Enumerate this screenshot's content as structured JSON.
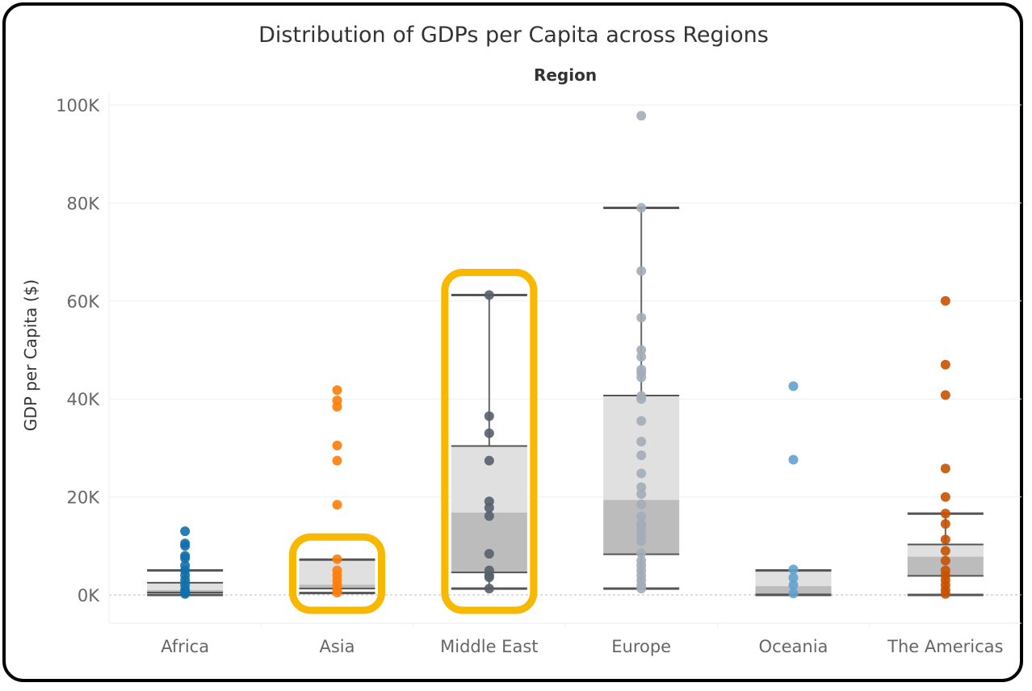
{
  "chart_data": {
    "type": "boxplot",
    "title": "Distribution of GDPs per Capita across Regions",
    "column_header": "Region",
    "ylabel": "GDP per Capita ($)",
    "ylim": [
      0,
      100000
    ],
    "yticks": [
      0,
      20000,
      40000,
      60000,
      80000,
      100000
    ],
    "ytick_labels": [
      "0K",
      "20K",
      "40K",
      "60K",
      "80K",
      "100K"
    ],
    "grid": true,
    "highlighted": [
      "Asia",
      "Middle East"
    ],
    "highlight_color": "#f8b800",
    "categories": [
      "Africa",
      "Asia",
      "Middle East",
      "Europe",
      "Oceania",
      "The Americas"
    ],
    "series": [
      {
        "name": "Africa",
        "color": "#1170aa",
        "whisker_low": 0,
        "q1": 500,
        "median": 1000,
        "q3": 2500,
        "whisker_high": 5000,
        "points": [
          13000,
          10500,
          10000,
          8000,
          7500,
          6000,
          5000,
          4000,
          3000,
          2000,
          1000,
          500,
          200
        ]
      },
      {
        "name": "Asia",
        "color": "#fc7d0b",
        "whisker_low": 400,
        "q1": 1300,
        "median": 2100,
        "q3": 7200,
        "whisker_high": 7200,
        "points": [
          41800,
          39700,
          38400,
          30500,
          27400,
          18400,
          7300,
          5000,
          4000,
          3000,
          2000,
          1000,
          500
        ]
      },
      {
        "name": "Middle East",
        "color": "#57606c",
        "whisker_low": 1300,
        "q1": 4600,
        "median": 16800,
        "q3": 30400,
        "whisker_high": 61200,
        "points": [
          61200,
          36500,
          33000,
          27400,
          19100,
          17800,
          16100,
          8400,
          5000,
          4000,
          3600,
          1300
        ]
      },
      {
        "name": "Europe",
        "color": "#a3acb9",
        "whisker_low": 1300,
        "q1": 8300,
        "median": 19400,
        "q3": 40700,
        "whisker_high": 79000,
        "points": [
          97800,
          79000,
          66100,
          56600,
          50000,
          48600,
          46000,
          45300,
          44400,
          40600,
          40000,
          35500,
          31300,
          28500,
          24800,
          22000,
          20600,
          18500,
          16000,
          14500,
          14000,
          13000,
          12000,
          11000,
          8500,
          7000,
          6000,
          5000,
          4000,
          3000,
          2000,
          1300
        ]
      },
      {
        "name": "Oceania",
        "color": "#5fa2ce",
        "whisker_low": 0,
        "q1": 100,
        "median": 1800,
        "q3": 5000,
        "whisker_high": 5000,
        "points": [
          42600,
          27600,
          5200,
          3500,
          2000,
          300
        ]
      },
      {
        "name": "The Americas",
        "color": "#c85200",
        "whisker_low": 0,
        "q1": 3900,
        "median": 7800,
        "q3": 10300,
        "whisker_high": 16600,
        "points": [
          60000,
          47000,
          40800,
          25800,
          20000,
          16600,
          14500,
          11300,
          9000,
          7000,
          5000,
          4000,
          3000,
          2000,
          1000,
          200
        ]
      }
    ]
  }
}
